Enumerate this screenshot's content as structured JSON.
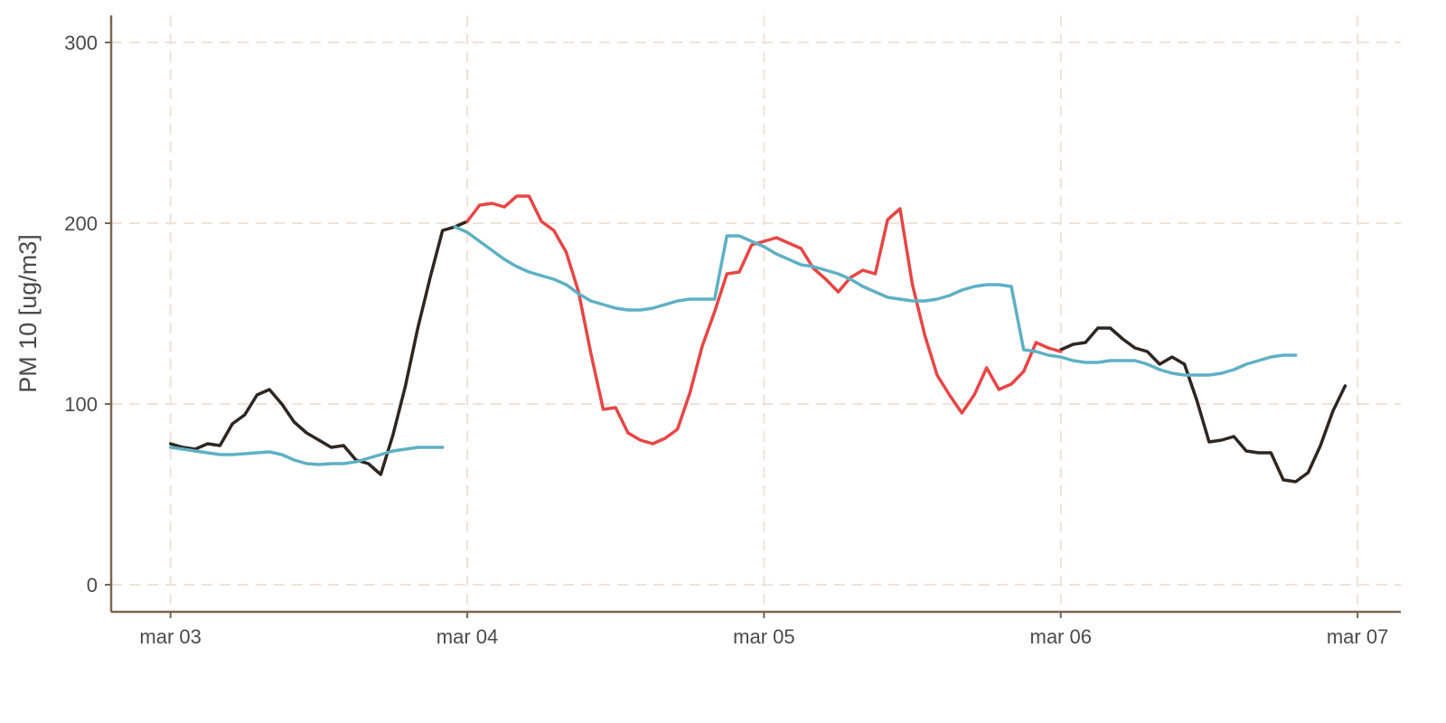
{
  "chart_data": {
    "type": "line",
    "ylabel": "PM 10 [ug/m3]",
    "xlabel": "",
    "x_ticks": [
      {
        "value": 0,
        "label": "mar 03"
      },
      {
        "value": 24,
        "label": "mar 04"
      },
      {
        "value": 48,
        "label": "mar 05"
      },
      {
        "value": 72,
        "label": "mar 06"
      },
      {
        "value": 96,
        "label": "mar 07"
      }
    ],
    "y_ticks": [
      0,
      100,
      200,
      300
    ],
    "xlim": [
      -4.8,
      99.5
    ],
    "ylim": [
      -15,
      315
    ],
    "grid": true,
    "colors": {
      "observed": "#2e2620",
      "forecast": "#e84545",
      "model": "#5fb0c4",
      "axis": "#7a6650",
      "grid": "#efe3d8"
    },
    "series": [
      {
        "id": "observed-day1",
        "color_key": "observed",
        "points": [
          [
            0,
            78
          ],
          [
            1,
            76
          ],
          [
            2,
            75
          ],
          [
            3,
            78
          ],
          [
            4,
            77
          ],
          [
            5,
            89
          ],
          [
            6,
            94
          ],
          [
            7,
            105
          ],
          [
            8,
            108
          ],
          [
            9,
            100
          ],
          [
            10,
            90
          ],
          [
            11,
            84
          ],
          [
            12,
            80
          ],
          [
            13,
            76
          ],
          [
            14,
            77
          ],
          [
            15,
            69
          ],
          [
            16,
            67
          ],
          [
            17,
            61
          ],
          [
            18,
            83
          ],
          [
            19,
            110
          ],
          [
            20,
            142
          ],
          [
            21,
            170
          ],
          [
            22,
            196
          ],
          [
            23,
            198
          ],
          [
            24,
            201
          ]
        ]
      },
      {
        "id": "observed-day4",
        "color_key": "observed",
        "points": [
          [
            72,
            130
          ],
          [
            73,
            133
          ],
          [
            74,
            134
          ],
          [
            75,
            142
          ],
          [
            76,
            142
          ],
          [
            77,
            136
          ],
          [
            78,
            131
          ],
          [
            79,
            129
          ],
          [
            80,
            122
          ],
          [
            81,
            126
          ],
          [
            82,
            122
          ],
          [
            83,
            102
          ],
          [
            84,
            79
          ],
          [
            85,
            80
          ],
          [
            86,
            82
          ],
          [
            87,
            74
          ],
          [
            88,
            73
          ],
          [
            89,
            73
          ],
          [
            90,
            58
          ],
          [
            91,
            57
          ],
          [
            92,
            62
          ],
          [
            93,
            77
          ],
          [
            94,
            96
          ],
          [
            95,
            110
          ]
        ]
      },
      {
        "id": "forecast-day2",
        "color_key": "forecast",
        "points": [
          [
            24,
            201
          ],
          [
            25,
            210
          ],
          [
            26,
            211
          ],
          [
            27,
            209
          ],
          [
            28,
            215
          ],
          [
            29,
            215
          ],
          [
            30,
            201
          ],
          [
            31,
            196
          ],
          [
            32,
            184
          ],
          [
            33,
            162
          ],
          [
            34,
            128
          ],
          [
            35,
            97
          ],
          [
            36,
            98
          ],
          [
            37,
            84
          ],
          [
            38,
            80
          ],
          [
            39,
            78
          ],
          [
            40,
            81
          ],
          [
            41,
            86
          ],
          [
            42,
            106
          ],
          [
            43,
            132
          ],
          [
            44,
            151
          ],
          [
            45,
            172
          ],
          [
            46,
            173
          ],
          [
            47,
            188
          ],
          [
            48,
            190
          ]
        ]
      },
      {
        "id": "forecast-day3",
        "color_key": "forecast",
        "points": [
          [
            48,
            190
          ],
          [
            49,
            192
          ],
          [
            50,
            189
          ],
          [
            51,
            186
          ],
          [
            52,
            175
          ],
          [
            53,
            169
          ],
          [
            54,
            162
          ],
          [
            55,
            170
          ],
          [
            56,
            174
          ],
          [
            57,
            172
          ],
          [
            58,
            202
          ],
          [
            59,
            208
          ],
          [
            60,
            166
          ],
          [
            61,
            138
          ],
          [
            62,
            116
          ],
          [
            63,
            105
          ],
          [
            64,
            95
          ],
          [
            65,
            105
          ],
          [
            66,
            120
          ],
          [
            67,
            108
          ],
          [
            68,
            111
          ],
          [
            69,
            118
          ],
          [
            70,
            134
          ],
          [
            71,
            131
          ],
          [
            72,
            129
          ]
        ]
      },
      {
        "id": "model-day1",
        "color_key": "model",
        "points": [
          [
            0,
            76
          ],
          [
            1,
            75
          ],
          [
            2,
            74
          ],
          [
            3,
            73
          ],
          [
            4,
            72
          ],
          [
            5,
            72
          ],
          [
            6,
            72.5
          ],
          [
            7,
            73
          ],
          [
            8,
            73.5
          ],
          [
            9,
            72
          ],
          [
            10,
            69
          ],
          [
            11,
            67
          ],
          [
            12,
            66.5
          ],
          [
            13,
            67
          ],
          [
            14,
            67
          ],
          [
            15,
            68
          ],
          [
            16,
            70
          ],
          [
            17,
            72
          ],
          [
            18,
            74
          ],
          [
            19,
            75
          ],
          [
            20,
            76
          ],
          [
            21,
            76
          ],
          [
            22,
            76
          ]
        ]
      },
      {
        "id": "model-day2",
        "color_key": "model",
        "points": [
          [
            23,
            198
          ],
          [
            24,
            195
          ],
          [
            25,
            190
          ],
          [
            26,
            185
          ],
          [
            27,
            180
          ],
          [
            28,
            176
          ],
          [
            29,
            173
          ],
          [
            30,
            171
          ],
          [
            31,
            169
          ],
          [
            32,
            166
          ],
          [
            33,
            161
          ],
          [
            34,
            157
          ],
          [
            35,
            155
          ],
          [
            36,
            153
          ],
          [
            37,
            152
          ],
          [
            38,
            152
          ],
          [
            39,
            153
          ],
          [
            40,
            155
          ],
          [
            41,
            157
          ],
          [
            42,
            158
          ],
          [
            43,
            158
          ],
          [
            44,
            158
          ]
        ]
      },
      {
        "id": "model-day3",
        "color_key": "model",
        "points": [
          [
            44,
            158
          ],
          [
            45,
            193
          ],
          [
            46,
            193
          ],
          [
            47,
            190
          ],
          [
            48,
            187
          ],
          [
            49,
            183
          ],
          [
            50,
            180
          ],
          [
            51,
            177
          ],
          [
            52,
            176
          ],
          [
            53,
            174
          ],
          [
            54,
            172
          ],
          [
            55,
            169
          ],
          [
            56,
            165
          ],
          [
            57,
            162
          ],
          [
            58,
            159
          ],
          [
            59,
            158
          ],
          [
            60,
            157
          ],
          [
            61,
            157
          ],
          [
            62,
            158
          ],
          [
            63,
            160
          ],
          [
            64,
            163
          ],
          [
            65,
            165
          ],
          [
            66,
            166
          ],
          [
            67,
            166
          ],
          [
            68,
            165
          ]
        ]
      },
      {
        "id": "model-day4",
        "color_key": "model",
        "points": [
          [
            68,
            165
          ],
          [
            69,
            130
          ],
          [
            70,
            129
          ],
          [
            71,
            127
          ],
          [
            72,
            126
          ],
          [
            73,
            124
          ],
          [
            74,
            123
          ],
          [
            75,
            123
          ],
          [
            76,
            124
          ],
          [
            77,
            124
          ],
          [
            78,
            124
          ],
          [
            79,
            122
          ],
          [
            80,
            119
          ],
          [
            81,
            117
          ],
          [
            82,
            116
          ],
          [
            83,
            116
          ],
          [
            84,
            116
          ],
          [
            85,
            117
          ],
          [
            86,
            119
          ],
          [
            87,
            122
          ],
          [
            88,
            124
          ],
          [
            89,
            126
          ],
          [
            90,
            127
          ],
          [
            91,
            127
          ]
        ]
      }
    ]
  }
}
